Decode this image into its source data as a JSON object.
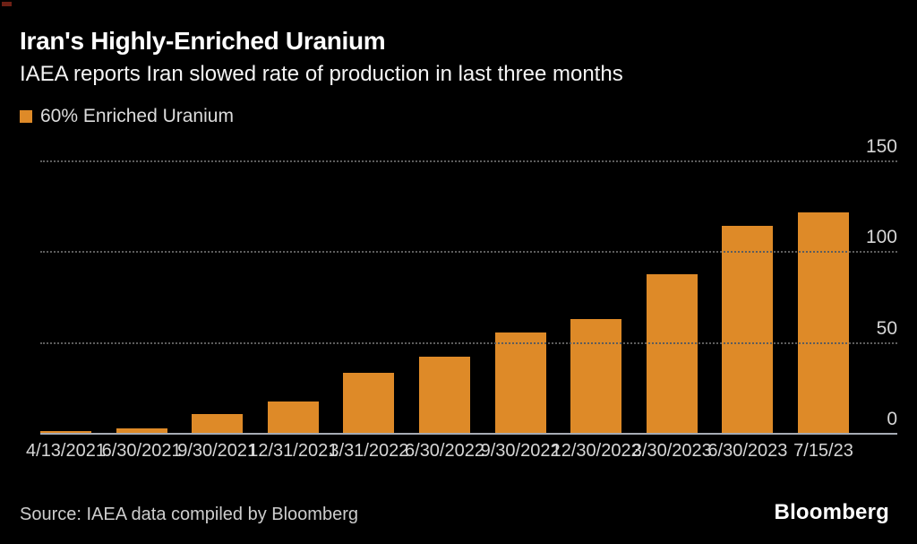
{
  "header": {
    "title": "Iran's Highly-Enriched Uranium",
    "subtitle": "IAEA reports Iran slowed rate of production in last three months"
  },
  "legend": {
    "label": "60% Enriched Uranium"
  },
  "chart_data": {
    "type": "bar",
    "title": "Iran's Highly-Enriched Uranium",
    "subtitle": "IAEA reports Iran slowed rate of production in last three months",
    "categories": [
      "4/13/2021",
      "6/30/2021",
      "9/30/2021",
      "12/31/2021",
      "3/31/2022",
      "6/30/2022",
      "9/30/2022",
      "12/30/2022",
      "3/30/2023",
      "6/30/2023",
      "7/15/23"
    ],
    "series": [
      {
        "name": "60% Enriched Uranium",
        "values": [
          1,
          2.5,
          10.5,
          17.5,
          33,
          42,
          55.5,
          62.5,
          87.5,
          114,
          121.5
        ]
      }
    ],
    "ylim": [
      0,
      150
    ],
    "yticks": [
      0,
      50,
      100,
      150
    ],
    "y_axis_side": "right",
    "grid": "horizontal-dotted",
    "legend_position": "top-left",
    "bar_color": "#de8a28"
  },
  "footer": {
    "source": "Source: IAEA data compiled by Bloomberg",
    "logo": "Bloomberg"
  },
  "colors": {
    "background": "#000000",
    "bar": "#de8a28",
    "title_text": "#ffffff",
    "axis_text": "#d6d6d6",
    "gridline": "#5d5d5d",
    "baseline": "#a6abb4"
  }
}
